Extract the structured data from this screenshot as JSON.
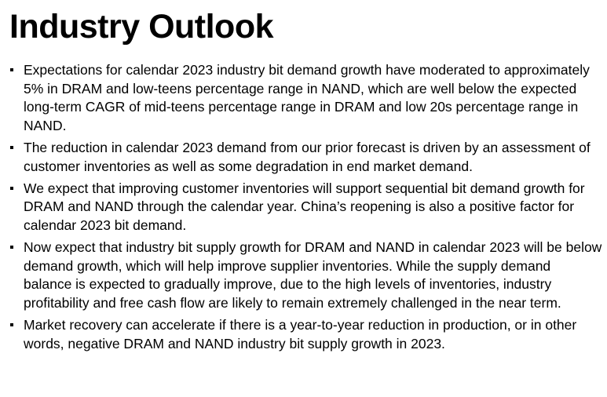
{
  "slide": {
    "title": "Industry Outlook",
    "bullets": [
      "Expectations for calendar 2023 industry bit demand growth have moderated to approximately 5% in DRAM and low-teens percentage range in NAND, which are well below the expected long-term CAGR of mid-teens percentage range in DRAM and low 20s percentage range in NAND.",
      "The reduction in calendar 2023 demand from our prior forecast is driven by an assessment of customer inventories as well as some degradation in end market demand.",
      "We expect that improving customer inventories will support sequential bit demand growth for DRAM and NAND through the calendar year. China’s reopening is also a positive factor for calendar 2023 bit demand.",
      "Now expect that industry bit supply growth for DRAM and NAND in calendar 2023 will be below demand growth, which will help improve supplier inventories. While the supply demand balance is expected to gradually improve, due to the high levels of inventories, industry profitability and free cash flow are likely to remain extremely challenged in the near term.",
      "Market recovery can accelerate if there is a year-to-year reduction in production, or in other words, negative DRAM and NAND industry bit supply growth in 2023."
    ]
  }
}
